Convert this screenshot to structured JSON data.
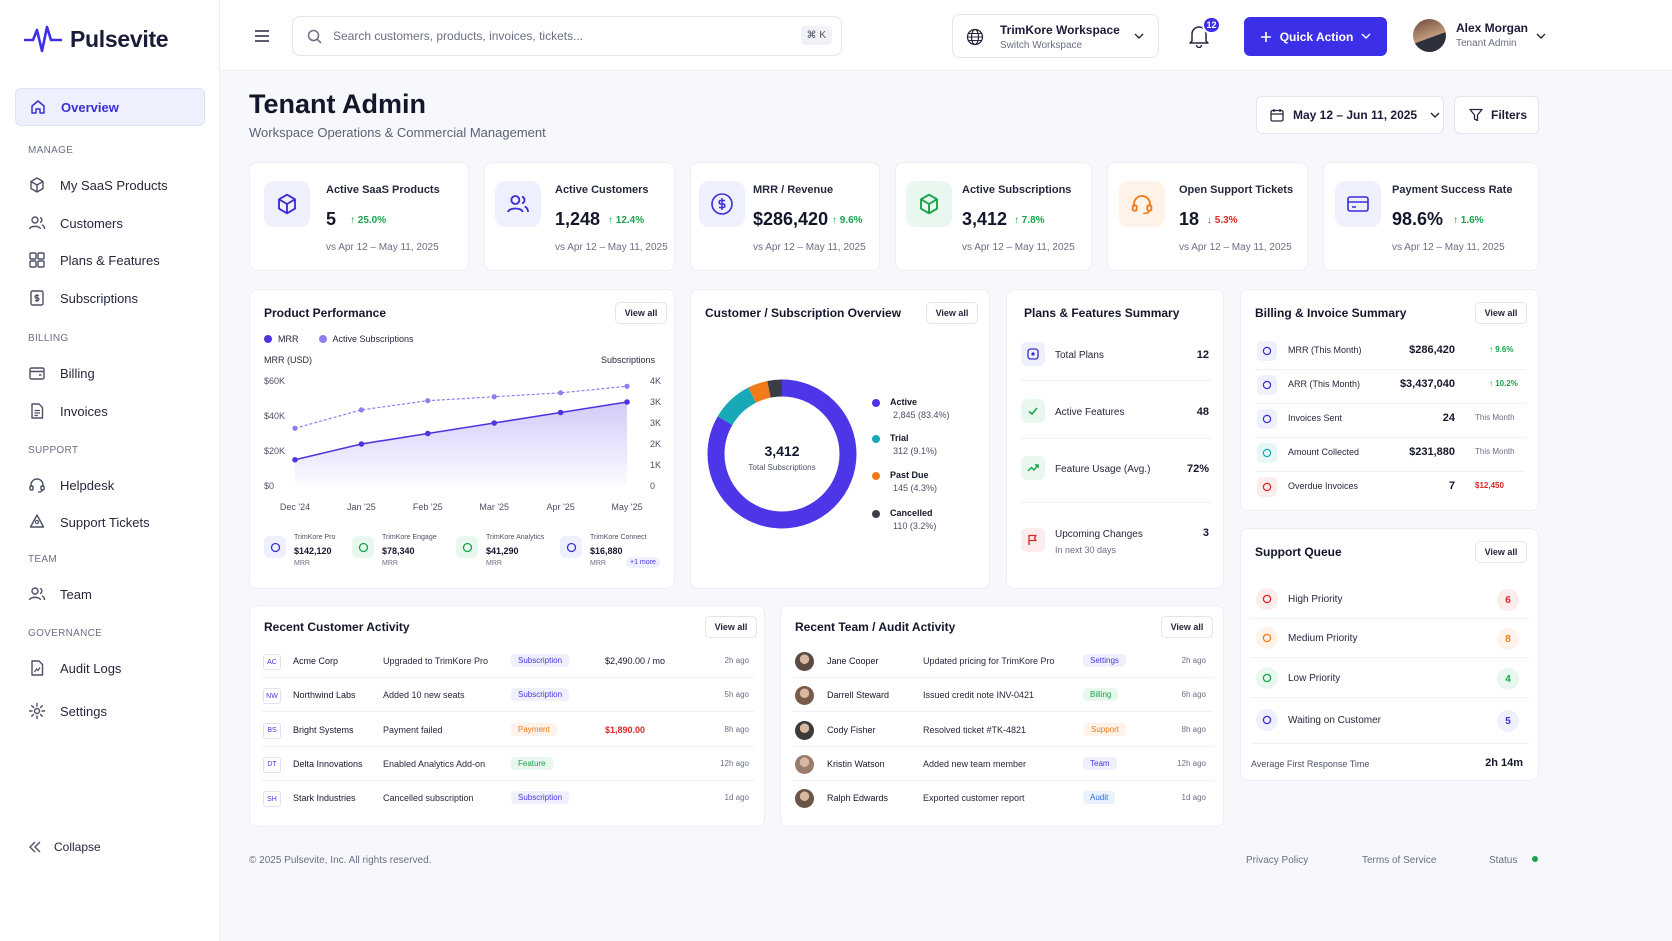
{
  "app": {
    "name": "Pulsevite"
  },
  "sidebar": {
    "overview": "Overview",
    "manage_title": "MANAGE",
    "products": "My SaaS Products",
    "customers": "Customers",
    "plans": "Plans & Features",
    "subscriptions": "Subscriptions",
    "billing_title": "BILLING",
    "billing": "Billing",
    "invoices": "Invoices",
    "support_title": "SUPPORT",
    "helpdesk": "Helpdesk",
    "tickets": "Support Tickets",
    "team_title": "TEAM",
    "team": "Team",
    "gov_title": "GOVERNANCE",
    "audit": "Audit Logs",
    "settings": "Settings",
    "collapse": "Collapse"
  },
  "topbar": {
    "search_placeholder": "Search customers, products, invoices, tickets...",
    "shortcut": "⌘ K",
    "workspace_name": "TrimKore Workspace",
    "workspace_sub": "Switch Workspace",
    "notif_count": "12",
    "quick_action": "Quick Action",
    "user_name": "Alex Morgan",
    "user_role": "Tenant Admin"
  },
  "page": {
    "title": "Tenant Admin",
    "subtitle": "Workspace Operations & Commercial Management",
    "date_range": "May 12 – Jun 11, 2025",
    "filters": "Filters"
  },
  "kpis": [
    {
      "label": "Active SaaS Products",
      "value": "5",
      "delta": "↑ 25.0%",
      "sub": "vs Apr 12 – May 11, 2025",
      "color": "#16a34a"
    },
    {
      "label": "Active Customers",
      "value": "1,248",
      "delta": "↑ 12.4%",
      "sub": "vs Apr 12 – May 11, 2025",
      "color": "#16a34a"
    },
    {
      "label": "MRR / Revenue",
      "value": "$286,420",
      "delta": "↑ 9.6%",
      "sub": "vs Apr 12 – May 11, 2025",
      "color": "#16a34a"
    },
    {
      "label": "Active Subscriptions",
      "value": "3,412",
      "delta": "↑ 7.8%",
      "sub": "vs Apr 12 – May 11, 2025",
      "color": "#16a34a"
    },
    {
      "label": "Open Support Tickets",
      "value": "18",
      "delta": "↓ 5.3%",
      "sub": "vs Apr 12 – May 11, 2025",
      "color": "#dc2626"
    },
    {
      "label": "Payment Success Rate",
      "value": "98.6%",
      "delta": "↑ 1.6%",
      "sub": "vs Apr 12 – May 11, 2025",
      "color": "#16a34a"
    }
  ],
  "perf": {
    "title": "Product Performance",
    "view_all": "View all",
    "legend_mrr": "MRR",
    "legend_subs": "Active Subscriptions",
    "left_axis": "MRR (USD)",
    "right_axis": "Subscriptions",
    "products": [
      {
        "name": "TrimKore Pro",
        "value": "$142,120",
        "unit": "MRR"
      },
      {
        "name": "TrimKore Engage",
        "value": "$78,340",
        "unit": "MRR"
      },
      {
        "name": "TrimKore Analytics",
        "value": "$41,290",
        "unit": "MRR"
      },
      {
        "name": "TrimKore Connect",
        "value": "$16,880",
        "unit": "MRR"
      }
    ],
    "more": "+1 more"
  },
  "chart_data": {
    "type": "line",
    "x": [
      "Dec '24",
      "Jan '25",
      "Feb '25",
      "Mar '25",
      "Apr '25",
      "May '25"
    ],
    "series": [
      {
        "name": "MRR",
        "axis": "left",
        "values": [
          15000,
          24000,
          30000,
          36000,
          42000,
          48000
        ],
        "color": "#4d35e0"
      },
      {
        "name": "Active Subscriptions",
        "axis": "right",
        "values": [
          2200,
          2900,
          3250,
          3400,
          3550,
          3800
        ],
        "color": "#8f7ef0"
      }
    ],
    "ylabel": "MRR (USD)",
    "y2label": "Subscriptions",
    "yticks": [
      "$60K",
      "$40K",
      "$20K",
      "$0"
    ],
    "y2ticks": [
      "4K",
      "3K",
      "3K",
      "2K",
      "1K",
      "0"
    ],
    "ylim": [
      0,
      60000
    ],
    "y2lim": [
      0,
      4000
    ],
    "grid": false
  },
  "donut": {
    "title": "Customer / Subscription Overview",
    "view_all": "View all",
    "total": "3,412",
    "total_label": "Total Subscriptions",
    "slices": [
      {
        "name": "Active",
        "detail": "2,845 (83.4%)",
        "pct": 83.4,
        "color": "#4d35e8"
      },
      {
        "name": "Trial",
        "detail": "312 (9.1%)",
        "pct": 9.1,
        "color": "#17a9b8"
      },
      {
        "name": "Past Due",
        "detail": "145 (4.3%)",
        "pct": 4.3,
        "color": "#f17a1a"
      },
      {
        "name": "Cancelled",
        "detail": "110 (3.2%)",
        "pct": 3.2,
        "color": "#3b3d45"
      }
    ]
  },
  "plans": {
    "title": "Plans & Features Summary",
    "rows": [
      {
        "label": "Total Plans",
        "value": "12",
        "sub": ""
      },
      {
        "label": "Active Features",
        "value": "48",
        "sub": ""
      },
      {
        "label": "Feature Usage (Avg.)",
        "value": "72%",
        "sub": ""
      },
      {
        "label": "Upcoming Changes",
        "value": "3",
        "sub": "In next 30 days"
      }
    ]
  },
  "billing": {
    "title": "Billing & Invoice Summary",
    "view_all": "View all",
    "rows": [
      {
        "label": "MRR (This Month)",
        "value": "$286,420",
        "extra": "↑ 9.6%"
      },
      {
        "label": "ARR (This Month)",
        "value": "$3,437,040",
        "extra": "↑ 10.2%"
      },
      {
        "label": "Invoices Sent",
        "value": "24",
        "extra": "This Month"
      },
      {
        "label": "Amount Collected",
        "value": "$231,880",
        "extra": "This Month"
      },
      {
        "label": "Overdue Invoices",
        "value": "7",
        "extra": "$12,450"
      }
    ]
  },
  "queue": {
    "title": "Support Queue",
    "view_all": "View all",
    "rows": [
      {
        "label": "High Priority",
        "count": "6"
      },
      {
        "label": "Medium Priority",
        "count": "8"
      },
      {
        "label": "Low Priority",
        "count": "4"
      },
      {
        "label": "Waiting on Customer",
        "count": "5"
      }
    ],
    "avg_label": "Average First Response Time",
    "avg_value": "2h 14m"
  },
  "activity": {
    "title": "Recent Customer Activity",
    "view_all": "View all",
    "rows": [
      {
        "initials": "AC",
        "name": "Acme Corp",
        "action": "Upgraded to TrimKore Pro",
        "tag": "Subscription",
        "amount": "$2,490.00 / mo",
        "time": "2h ago"
      },
      {
        "initials": "NW",
        "name": "Northwind Labs",
        "action": "Added 10 new seats",
        "tag": "Subscription",
        "amount": "",
        "time": "5h ago"
      },
      {
        "initials": "BS",
        "name": "Bright Systems",
        "action": "Payment failed",
        "tag": "Payment",
        "amount": "$1,890.00",
        "time": "8h ago"
      },
      {
        "initials": "DT",
        "name": "Delta Innovations",
        "action": "Enabled Analytics Add-on",
        "tag": "Feature",
        "amount": "",
        "time": "12h ago"
      },
      {
        "initials": "SH",
        "name": "Stark Industries",
        "action": "Cancelled subscription",
        "tag": "Subscription",
        "amount": "",
        "time": "1d ago"
      }
    ]
  },
  "audit": {
    "title": "Recent Team / Audit Activity",
    "view_all": "View all",
    "rows": [
      {
        "name": "Jane Cooper",
        "action": "Updated pricing for TrimKore Pro",
        "tag": "Settings",
        "time": "2h ago"
      },
      {
        "name": "Darrell Steward",
        "action": "Issued credit note INV-0421",
        "tag": "Billing",
        "time": "6h ago"
      },
      {
        "name": "Cody Fisher",
        "action": "Resolved ticket #TK-4821",
        "tag": "Support",
        "time": "8h ago"
      },
      {
        "name": "Kristin Watson",
        "action": "Added new team member",
        "tag": "Team",
        "time": "12h ago"
      },
      {
        "name": "Ralph Edwards",
        "action": "Exported customer report",
        "tag": "Audit",
        "time": "1d ago"
      }
    ]
  },
  "footer": {
    "copyright": "© 2025 Pulsevite, Inc. All rights reserved.",
    "privacy": "Privacy Policy",
    "terms": "Terms of Service",
    "status": "Status"
  }
}
